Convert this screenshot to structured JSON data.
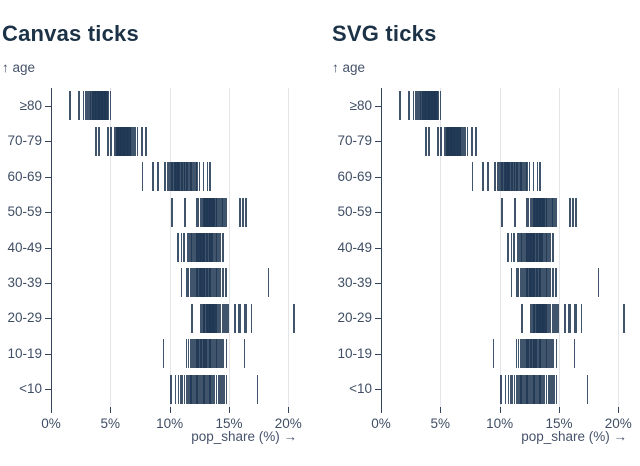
{
  "page": {
    "background": "#ffffff",
    "tick_color": "#1e3752",
    "grid_color": "#e4e5e8",
    "axis_color": "#33435a",
    "label_color": "#3f4e64",
    "title_color": "#1c3246"
  },
  "chart_data": [
    {
      "type": "tick",
      "title": "Canvas ticks",
      "ylabel": "↑ age",
      "xlabel": "pop_share (%) →",
      "x_tick_labels": [
        "0%",
        "5%",
        "10%",
        "15%",
        "20%"
      ],
      "x_tick_values": [
        0,
        5,
        10,
        15,
        20
      ],
      "xlim": [
        0,
        20.7
      ],
      "grid": true,
      "categories": [
        "≥80",
        "70-79",
        "60-69",
        "50-59",
        "40-49",
        "30-39",
        "20-29",
        "10-19",
        "<10"
      ],
      "series": [
        {
          "name": "≥80",
          "values": [
            1.6,
            2.35,
            2.75,
            2.95,
            3.1,
            3.3,
            3.35,
            3.45,
            3.5,
            3.55,
            3.6,
            3.65,
            3.7,
            3.75,
            3.8,
            3.85,
            3.9,
            3.95,
            4.0,
            4.05,
            4.1,
            4.15,
            4.2,
            4.25,
            4.3,
            4.35,
            4.4,
            4.45,
            4.5,
            4.55,
            4.6,
            4.65,
            4.7,
            4.75,
            4.85,
            5.0
          ]
        },
        {
          "name": "70-79",
          "values": [
            3.8,
            4.05,
            4.8,
            5.05,
            5.4,
            5.5,
            5.55,
            5.6,
            5.65,
            5.7,
            5.75,
            5.8,
            5.85,
            5.9,
            5.95,
            6.0,
            6.05,
            6.1,
            6.15,
            6.2,
            6.25,
            6.3,
            6.35,
            6.4,
            6.45,
            6.5,
            6.55,
            6.6,
            6.65,
            6.7,
            6.75,
            6.85,
            6.95,
            7.1,
            7.3,
            7.65,
            8.0
          ]
        },
        {
          "name": "60-69",
          "values": [
            7.7,
            8.6,
            9.0,
            9.6,
            9.8,
            9.95,
            10.1,
            10.2,
            10.3,
            10.4,
            10.45,
            10.5,
            10.55,
            10.6,
            10.65,
            10.7,
            10.75,
            10.8,
            10.85,
            10.9,
            11.0,
            11.05,
            11.1,
            11.2,
            11.25,
            11.3,
            11.4,
            11.45,
            11.5,
            11.6,
            11.7,
            11.8,
            11.9,
            12.0,
            12.1,
            12.2,
            12.3,
            12.5,
            12.85,
            13.2,
            13.4
          ]
        },
        {
          "name": "50-59",
          "values": [
            10.2,
            11.3,
            12.3,
            12.45,
            12.6,
            12.7,
            12.8,
            12.9,
            12.95,
            13.0,
            13.05,
            13.1,
            13.15,
            13.2,
            13.25,
            13.3,
            13.35,
            13.4,
            13.45,
            13.5,
            13.55,
            13.6,
            13.65,
            13.7,
            13.75,
            13.8,
            13.9,
            13.95,
            14.0,
            14.1,
            14.2,
            14.3,
            14.4,
            14.5,
            14.65,
            14.8,
            15.95,
            16.2,
            16.45
          ]
        },
        {
          "name": "40-49",
          "values": [
            10.7,
            11.0,
            11.2,
            11.5,
            11.65,
            11.8,
            11.9,
            12.0,
            12.1,
            12.2,
            12.25,
            12.3,
            12.4,
            12.45,
            12.5,
            12.55,
            12.6,
            12.65,
            12.7,
            12.75,
            12.8,
            12.85,
            12.9,
            12.95,
            13.0,
            13.1,
            13.15,
            13.2,
            13.3,
            13.35,
            13.4,
            13.5,
            13.55,
            13.6,
            13.7,
            13.8,
            13.9,
            14.0,
            14.15,
            14.3,
            14.5
          ]
        },
        {
          "name": "30-39",
          "values": [
            11.0,
            11.45,
            11.6,
            11.75,
            11.9,
            12.0,
            12.1,
            12.2,
            12.3,
            12.35,
            12.4,
            12.5,
            12.55,
            12.6,
            12.65,
            12.7,
            12.75,
            12.8,
            12.9,
            12.95,
            13.0,
            13.1,
            13.15,
            13.2,
            13.3,
            13.35,
            13.4,
            13.5,
            13.6,
            13.7,
            13.8,
            13.9,
            14.0,
            14.15,
            14.3,
            14.5,
            14.75,
            18.35
          ]
        },
        {
          "name": "20-29",
          "values": [
            11.9,
            12.6,
            12.7,
            12.8,
            12.9,
            12.95,
            13.0,
            13.1,
            13.15,
            13.2,
            13.25,
            13.3,
            13.35,
            13.4,
            13.45,
            13.5,
            13.55,
            13.6,
            13.65,
            13.7,
            13.75,
            13.8,
            13.85,
            13.9,
            14.0,
            14.1,
            14.2,
            14.3,
            14.45,
            14.6,
            14.75,
            14.9,
            15.5,
            15.8,
            15.95,
            16.3,
            16.45,
            16.9,
            20.5
          ]
        },
        {
          "name": "10-19",
          "values": [
            9.5,
            11.4,
            11.6,
            11.75,
            11.9,
            12.0,
            12.1,
            12.2,
            12.3,
            12.4,
            12.45,
            12.5,
            12.6,
            12.65,
            12.7,
            12.8,
            12.85,
            12.9,
            13.0,
            13.05,
            13.1,
            13.2,
            13.3,
            13.4,
            13.45,
            13.5,
            13.6,
            13.7,
            13.8,
            13.9,
            14.0,
            14.1,
            14.25,
            14.4,
            14.55,
            14.8,
            16.3
          ]
        },
        {
          "name": "<10",
          "values": [
            10.1,
            10.5,
            10.75,
            10.95,
            11.1,
            11.25,
            11.4,
            11.5,
            11.6,
            11.7,
            11.8,
            11.9,
            12.0,
            12.1,
            12.2,
            12.3,
            12.4,
            12.5,
            12.6,
            12.7,
            12.8,
            12.9,
            13.0,
            13.1,
            13.2,
            13.3,
            13.4,
            13.5,
            13.6,
            13.7,
            13.8,
            13.95,
            14.1,
            14.25,
            14.4,
            14.6,
            14.8,
            17.4
          ]
        }
      ]
    },
    {
      "type": "tick",
      "title": "SVG ticks",
      "ylabel": "↑ age",
      "xlabel": "pop_share (%) →",
      "x_tick_labels": [
        "0%",
        "5%",
        "10%",
        "15%",
        "20%"
      ],
      "x_tick_values": [
        0,
        5,
        10,
        15,
        20
      ],
      "xlim": [
        0,
        20.7
      ],
      "grid": true,
      "categories": [
        "≥80",
        "70-79",
        "60-69",
        "50-59",
        "40-49",
        "30-39",
        "20-29",
        "10-19",
        "<10"
      ],
      "series": [
        {
          "name": "≥80",
          "values": [
            1.6,
            2.35,
            2.75,
            2.95,
            3.1,
            3.3,
            3.35,
            3.45,
            3.5,
            3.55,
            3.6,
            3.65,
            3.7,
            3.75,
            3.8,
            3.85,
            3.9,
            3.95,
            4.0,
            4.05,
            4.1,
            4.15,
            4.2,
            4.25,
            4.3,
            4.35,
            4.4,
            4.45,
            4.5,
            4.55,
            4.6,
            4.65,
            4.7,
            4.75,
            4.85,
            5.0
          ]
        },
        {
          "name": "70-79",
          "values": [
            3.8,
            4.05,
            4.8,
            5.05,
            5.4,
            5.5,
            5.55,
            5.6,
            5.65,
            5.7,
            5.75,
            5.8,
            5.85,
            5.9,
            5.95,
            6.0,
            6.05,
            6.1,
            6.15,
            6.2,
            6.25,
            6.3,
            6.35,
            6.4,
            6.45,
            6.5,
            6.55,
            6.6,
            6.65,
            6.7,
            6.75,
            6.85,
            6.95,
            7.1,
            7.3,
            7.65,
            8.0
          ]
        },
        {
          "name": "60-69",
          "values": [
            7.7,
            8.6,
            9.0,
            9.6,
            9.8,
            9.95,
            10.1,
            10.2,
            10.3,
            10.4,
            10.45,
            10.5,
            10.55,
            10.6,
            10.65,
            10.7,
            10.75,
            10.8,
            10.85,
            10.9,
            11.0,
            11.05,
            11.1,
            11.2,
            11.25,
            11.3,
            11.4,
            11.45,
            11.5,
            11.6,
            11.7,
            11.8,
            11.9,
            12.0,
            12.1,
            12.2,
            12.3,
            12.5,
            12.85,
            13.2,
            13.4
          ]
        },
        {
          "name": "50-59",
          "values": [
            10.2,
            11.3,
            12.3,
            12.45,
            12.6,
            12.7,
            12.8,
            12.9,
            12.95,
            13.0,
            13.05,
            13.1,
            13.15,
            13.2,
            13.25,
            13.3,
            13.35,
            13.4,
            13.45,
            13.5,
            13.55,
            13.6,
            13.65,
            13.7,
            13.75,
            13.8,
            13.9,
            13.95,
            14.0,
            14.1,
            14.2,
            14.3,
            14.4,
            14.5,
            14.65,
            14.8,
            15.95,
            16.2,
            16.45
          ]
        },
        {
          "name": "40-49",
          "values": [
            10.7,
            11.0,
            11.2,
            11.5,
            11.65,
            11.8,
            11.9,
            12.0,
            12.1,
            12.2,
            12.25,
            12.3,
            12.4,
            12.45,
            12.5,
            12.55,
            12.6,
            12.65,
            12.7,
            12.75,
            12.8,
            12.85,
            12.9,
            12.95,
            13.0,
            13.1,
            13.15,
            13.2,
            13.3,
            13.35,
            13.4,
            13.5,
            13.55,
            13.6,
            13.7,
            13.8,
            13.9,
            14.0,
            14.15,
            14.3,
            14.5
          ]
        },
        {
          "name": "30-39",
          "values": [
            11.0,
            11.45,
            11.6,
            11.75,
            11.9,
            12.0,
            12.1,
            12.2,
            12.3,
            12.35,
            12.4,
            12.5,
            12.55,
            12.6,
            12.65,
            12.7,
            12.75,
            12.8,
            12.9,
            12.95,
            13.0,
            13.1,
            13.15,
            13.2,
            13.3,
            13.35,
            13.4,
            13.5,
            13.6,
            13.7,
            13.8,
            13.9,
            14.0,
            14.15,
            14.3,
            14.5,
            14.75,
            18.35
          ]
        },
        {
          "name": "20-29",
          "values": [
            11.9,
            12.6,
            12.7,
            12.8,
            12.9,
            12.95,
            13.0,
            13.1,
            13.15,
            13.2,
            13.25,
            13.3,
            13.35,
            13.4,
            13.45,
            13.5,
            13.55,
            13.6,
            13.65,
            13.7,
            13.75,
            13.8,
            13.85,
            13.9,
            14.0,
            14.1,
            14.2,
            14.3,
            14.45,
            14.6,
            14.75,
            14.9,
            15.5,
            15.8,
            15.95,
            16.3,
            16.45,
            16.9,
            20.5
          ]
        },
        {
          "name": "10-19",
          "values": [
            9.5,
            11.4,
            11.6,
            11.75,
            11.9,
            12.0,
            12.1,
            12.2,
            12.3,
            12.4,
            12.45,
            12.5,
            12.6,
            12.65,
            12.7,
            12.8,
            12.85,
            12.9,
            13.0,
            13.05,
            13.1,
            13.2,
            13.3,
            13.4,
            13.45,
            13.5,
            13.6,
            13.7,
            13.8,
            13.9,
            14.0,
            14.1,
            14.25,
            14.4,
            14.55,
            14.8,
            16.3
          ]
        },
        {
          "name": "<10",
          "values": [
            10.1,
            10.5,
            10.75,
            10.95,
            11.1,
            11.25,
            11.4,
            11.5,
            11.6,
            11.7,
            11.8,
            11.9,
            12.0,
            12.1,
            12.2,
            12.3,
            12.4,
            12.5,
            12.6,
            12.7,
            12.8,
            12.9,
            13.0,
            13.1,
            13.2,
            13.3,
            13.4,
            13.5,
            13.6,
            13.7,
            13.8,
            13.95,
            14.1,
            14.25,
            14.4,
            14.6,
            14.8,
            17.4
          ]
        }
      ]
    }
  ]
}
